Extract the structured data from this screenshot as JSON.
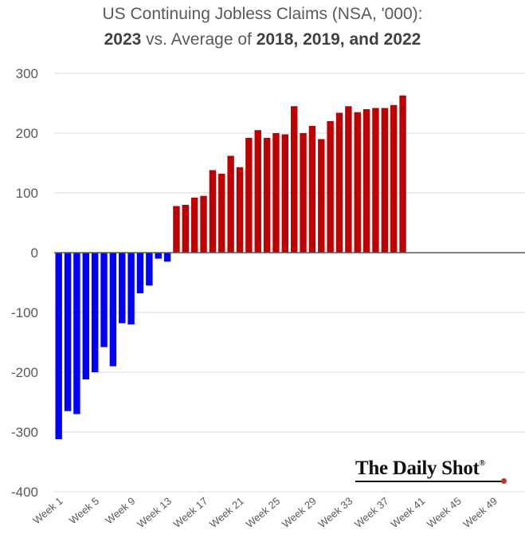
{
  "chart_data": {
    "type": "bar",
    "title_line1": "US Continuing Jobless Claims (NSA, '000):",
    "title_line2": {
      "part1": "2023",
      "part2": " vs. Average of ",
      "part3": "2018, 2019, and 2022"
    },
    "xlabel": "",
    "ylabel": "",
    "ylim": [
      -400,
      300
    ],
    "yticks": [
      300,
      200,
      100,
      0,
      -100,
      -200,
      -300,
      -400
    ],
    "ytick_labels": [
      "300",
      "200",
      "100",
      "0",
      "-100",
      "-200",
      "-300",
      "-400"
    ],
    "weeks": 52,
    "xtick_labels": [
      "Week 1",
      "Week 5",
      "Week 9",
      "Week 13",
      "Week 17",
      "Week 21",
      "Week 25",
      "Week 29",
      "Week 33",
      "Week 37",
      "Week 41",
      "Week 45",
      "Week 49"
    ],
    "xtick_weeks": [
      1,
      5,
      9,
      13,
      17,
      21,
      25,
      29,
      33,
      37,
      41,
      45,
      49
    ],
    "values": [
      -312,
      -265,
      -270,
      -212,
      -200,
      -158,
      -190,
      -118,
      -120,
      -68,
      -55,
      -10,
      -15,
      78,
      80,
      92,
      95,
      138,
      132,
      162,
      143,
      192,
      205,
      192,
      200,
      198,
      245,
      200,
      212,
      190,
      220,
      234,
      245,
      235,
      240,
      242,
      242,
      247,
      263
    ],
    "colors": {
      "negative": "#0000ff",
      "positive": "#c00000",
      "grid": "#d9d9d9",
      "zero_line": "#595959"
    },
    "grid": true,
    "legend": "none"
  },
  "branding": {
    "logo_text": "The Daily Shot",
    "logo_mark": "®"
  }
}
